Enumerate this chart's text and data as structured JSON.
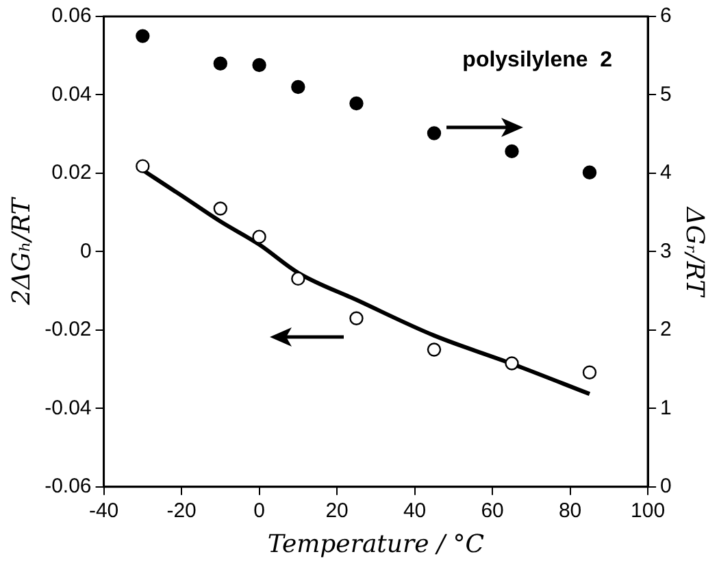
{
  "chart_data": {
    "type": "scatter",
    "xlabel": "Temperature / °C",
    "ylabel": "2ΔGₕ/RT",
    "y2label": "ΔGᵣ/RT",
    "annotations": [
      "polysilylene  2"
    ],
    "xlim": [
      -40,
      100
    ],
    "xticks": [
      -40,
      -20,
      0,
      20,
      40,
      60,
      80,
      100
    ],
    "ylim": [
      -0.06,
      0.06
    ],
    "yticks": [
      -0.06,
      -0.04,
      -0.02,
      0,
      0.02,
      0.04,
      0.06
    ],
    "y2lim": [
      0,
      6
    ],
    "y2ticks": [
      0,
      1,
      2,
      3,
      4,
      5,
      6
    ],
    "grid": false,
    "legend": false,
    "series": [
      {
        "axis": "y2",
        "marker": "circle",
        "color": "#000000",
        "x": [
          -30,
          -10,
          0,
          10,
          25,
          45,
          65,
          85
        ],
        "values": [
          5.75,
          5.4,
          5.38,
          5.1,
          4.89,
          4.51,
          4.28,
          4.01
        ]
      },
      {
        "axis": "y",
        "marker": "circle",
        "color": "#ffffff",
        "x": [
          -30,
          -10,
          0,
          10,
          25,
          45,
          65,
          85
        ],
        "values": [
          0.0218,
          0.011,
          0.0038,
          -0.0069,
          -0.017,
          -0.025,
          -0.0285,
          -0.0308
        ]
      },
      {
        "type": "line",
        "axis": "y",
        "marker": "none",
        "line_style": "solid",
        "color": "#000000",
        "x": [
          -30,
          -20,
          -10,
          0,
          10,
          25,
          45,
          65,
          85
        ],
        "values": [
          0.0208,
          0.0143,
          0.0077,
          0.0018,
          -0.0054,
          -0.0123,
          -0.0214,
          -0.0286,
          -0.0363
        ]
      }
    ]
  }
}
